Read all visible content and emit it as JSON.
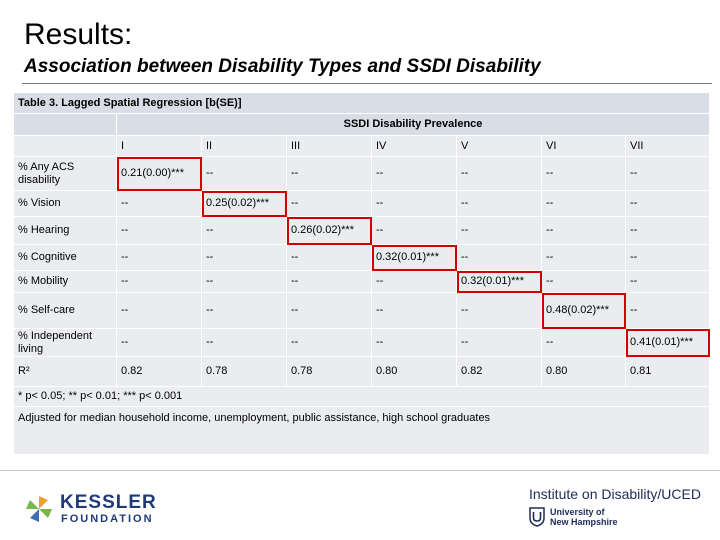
{
  "slide": {
    "title": "Results:",
    "subtitle": "Association between Disability Types and SSDI Disability"
  },
  "table": {
    "caption": "Table 3. Lagged Spatial Regression [b(SE)]",
    "group_header": "SSDI Disability Prevalence",
    "columns": [
      "I",
      "II",
      "III",
      "IV",
      "V",
      "VI",
      "VII"
    ],
    "rows": [
      {
        "label": "% Any ACS disability",
        "cells": [
          "0.21(0.00)***",
          "--",
          "--",
          "--",
          "--",
          "--",
          "--"
        ],
        "highlight": 0
      },
      {
        "label": "% Vision",
        "cells": [
          "--",
          "0.25(0.02)***",
          "--",
          "--",
          "--",
          "--",
          "--"
        ],
        "highlight": 1
      },
      {
        "label": "% Hearing",
        "cells": [
          "--",
          "--",
          "0.26(0.02)***",
          "--",
          "--",
          "--",
          "--"
        ],
        "highlight": 2
      },
      {
        "label": "% Cognitive",
        "cells": [
          "--",
          "--",
          "--",
          "0.32(0.01)***",
          "--",
          "--",
          "--"
        ],
        "highlight": 3
      },
      {
        "label": "% Mobility",
        "cells": [
          "--",
          "--",
          "--",
          "--",
          "0.32(0.01)***",
          "--",
          "--"
        ],
        "highlight": 4
      },
      {
        "label": "% Self-care",
        "cells": [
          "--",
          "--",
          "--",
          "--",
          "--",
          "0.48(0.02)***",
          "--"
        ],
        "highlight": 5
      },
      {
        "label": "% Independent living",
        "cells": [
          "--",
          "--",
          "--",
          "--",
          "--",
          "--",
          "0.41(0.01)***"
        ],
        "highlight": 6
      },
      {
        "label": "R²",
        "cells": [
          "0.82",
          "0.78",
          "0.78",
          "0.80",
          "0.82",
          "0.80",
          "0.81"
        ],
        "highlight": -1
      }
    ],
    "significance_note": "* p< 0.05; ** p< 0.01; *** p< 0.001",
    "adjustment_note": "Adjusted for median household income, unemployment, public assistance, high school graduates",
    "highlight_color": "#d20000"
  },
  "logos": {
    "kessler_line1": "KESSLER",
    "kessler_line2": "FOUNDATION",
    "kessler_icon": "kessler-pinwheel-icon",
    "institute": "Institute on Disability/UCED",
    "unh_line1": "University of",
    "unh_line2": "New Hampshire",
    "unh_icon": "unh-shield-icon"
  },
  "colors": {
    "brand_navy": "#1e3a78",
    "kessler_orange": "#f0a030",
    "kessler_green": "#7ab648",
    "kessler_blue": "#3a6fb8"
  }
}
